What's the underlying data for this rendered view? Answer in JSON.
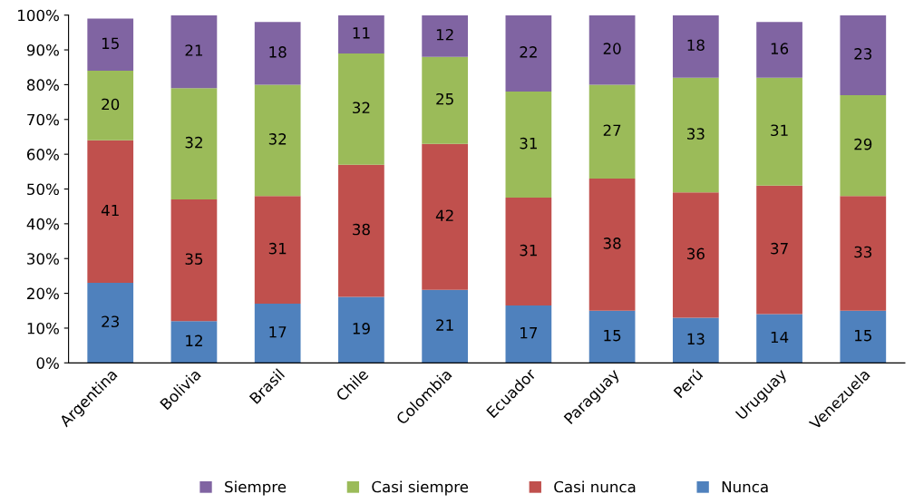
{
  "chart_data": {
    "type": "bar",
    "stacked": true,
    "data_labels": true,
    "grid": false,
    "legend": "bottom",
    "categories": [
      "Argentina",
      "Bolivia",
      "Brasil",
      "Chile",
      "Colombia",
      "Ecuador",
      "Paraguay",
      "Perú",
      "Uruguay",
      "Venezuela"
    ],
    "series": [
      {
        "name": "Nunca",
        "color": "#4f81bd",
        "values": [
          23,
          12,
          17,
          19,
          21,
          16.5,
          15,
          13,
          14,
          15
        ],
        "value_labels": [
          "23",
          "12",
          "17",
          "19",
          "21",
          "17",
          "15",
          "13",
          "14",
          "15"
        ]
      },
      {
        "name": "Casi nunca",
        "color": "#c0504d",
        "values": [
          41,
          35,
          31,
          38,
          42,
          31,
          38,
          36,
          37,
          33
        ]
      },
      {
        "name": "Casi siempre",
        "color": "#9bbb59",
        "values": [
          20,
          32,
          32,
          32,
          25,
          30.5,
          27,
          33,
          31,
          29
        ],
        "value_labels": [
          "20",
          "32",
          "32",
          "32",
          "25",
          "31",
          "27",
          "33",
          "31",
          "29"
        ]
      },
      {
        "name": "Siempre",
        "color": "#8064a2",
        "values": [
          15,
          21,
          18,
          11,
          12,
          22,
          20,
          18,
          16,
          23
        ]
      }
    ],
    "ylim": [
      0,
      100
    ],
    "yticks": [
      {
        "value": 0,
        "label": "0%"
      },
      {
        "value": 10,
        "label": "10%"
      },
      {
        "value": 20,
        "label": "20%"
      },
      {
        "value": 30,
        "label": "30%"
      },
      {
        "value": 40,
        "label": "40%"
      },
      {
        "value": 50,
        "label": "50%"
      },
      {
        "value": 60,
        "label": "60%"
      },
      {
        "value": 70,
        "label": "70%"
      },
      {
        "value": 80,
        "label": "80%"
      },
      {
        "value": 90,
        "label": "90%"
      },
      {
        "value": 100,
        "label": "100%"
      }
    ]
  }
}
